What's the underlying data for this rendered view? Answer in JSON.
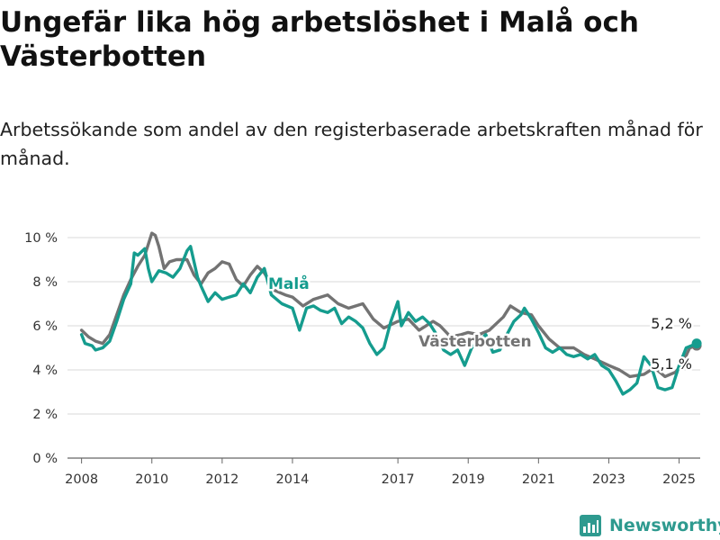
{
  "header": {
    "title": "Ungefär lika hög arbetslöshet i Malå och Västerbotten",
    "subtitle": "Arbetssökande som andel av den registerbaserade arbetskraften månad för månad."
  },
  "brand": {
    "name": "Newsworthy",
    "icon": "bar-chart-logo-icon",
    "color": "#2e9a8f"
  },
  "chart_data": {
    "type": "line",
    "ylim": [
      0,
      10
    ],
    "xlim": [
      2007.6,
      2025.6
    ],
    "y_ticks": [
      {
        "value": 0,
        "label": "0 %"
      },
      {
        "value": 2,
        "label": "2 %"
      },
      {
        "value": 4,
        "label": "4 %"
      },
      {
        "value": 6,
        "label": "6 %"
      },
      {
        "value": 8,
        "label": "8 %"
      },
      {
        "value": 10,
        "label": "10 %"
      }
    ],
    "x_ticks": [
      {
        "value": 2008,
        "label": "2008"
      },
      {
        "value": 2010,
        "label": "2010"
      },
      {
        "value": 2012,
        "label": "2012"
      },
      {
        "value": 2014,
        "label": "2014"
      },
      {
        "value": 2017,
        "label": "2017"
      },
      {
        "value": 2019,
        "label": "2019"
      },
      {
        "value": 2021,
        "label": "2021"
      },
      {
        "value": 2023,
        "label": "2023"
      },
      {
        "value": 2025,
        "label": "2025"
      }
    ],
    "grid": true,
    "series": [
      {
        "name": "Västerbotten",
        "color": "#737373",
        "end_label": "5,1 %",
        "points": [
          [
            2008.0,
            5.8
          ],
          [
            2008.2,
            5.5
          ],
          [
            2008.4,
            5.3
          ],
          [
            2008.6,
            5.2
          ],
          [
            2008.8,
            5.6
          ],
          [
            2009.0,
            6.5
          ],
          [
            2009.2,
            7.4
          ],
          [
            2009.4,
            8.1
          ],
          [
            2009.6,
            8.7
          ],
          [
            2009.8,
            9.2
          ],
          [
            2010.0,
            10.2
          ],
          [
            2010.1,
            10.1
          ],
          [
            2010.2,
            9.6
          ],
          [
            2010.35,
            8.6
          ],
          [
            2010.5,
            8.9
          ],
          [
            2010.7,
            9.0
          ],
          [
            2011.0,
            9.0
          ],
          [
            2011.2,
            8.3
          ],
          [
            2011.4,
            7.9
          ],
          [
            2011.6,
            8.4
          ],
          [
            2011.8,
            8.6
          ],
          [
            2012.0,
            8.9
          ],
          [
            2012.2,
            8.8
          ],
          [
            2012.4,
            8.1
          ],
          [
            2012.6,
            7.8
          ],
          [
            2012.8,
            8.3
          ],
          [
            2013.0,
            8.7
          ],
          [
            2013.2,
            8.4
          ],
          [
            2013.5,
            7.6
          ],
          [
            2013.8,
            7.4
          ],
          [
            2014.0,
            7.3
          ],
          [
            2014.3,
            6.9
          ],
          [
            2014.6,
            7.2
          ],
          [
            2015.0,
            7.4
          ],
          [
            2015.3,
            7.0
          ],
          [
            2015.6,
            6.8
          ],
          [
            2016.0,
            7.0
          ],
          [
            2016.3,
            6.3
          ],
          [
            2016.6,
            5.9
          ],
          [
            2017.0,
            6.2
          ],
          [
            2017.3,
            6.3
          ],
          [
            2017.6,
            5.8
          ],
          [
            2018.0,
            6.2
          ],
          [
            2018.2,
            6.0
          ],
          [
            2018.5,
            5.5
          ],
          [
            2018.8,
            5.6
          ],
          [
            2019.0,
            5.7
          ],
          [
            2019.3,
            5.6
          ],
          [
            2019.6,
            5.8
          ],
          [
            2020.0,
            6.4
          ],
          [
            2020.2,
            6.9
          ],
          [
            2020.5,
            6.6
          ],
          [
            2020.8,
            6.5
          ],
          [
            2021.0,
            6.0
          ],
          [
            2021.3,
            5.4
          ],
          [
            2021.6,
            5.0
          ],
          [
            2022.0,
            5.0
          ],
          [
            2022.3,
            4.7
          ],
          [
            2022.6,
            4.5
          ],
          [
            2023.0,
            4.2
          ],
          [
            2023.3,
            4.0
          ],
          [
            2023.6,
            3.7
          ],
          [
            2024.0,
            3.8
          ],
          [
            2024.3,
            4.1
          ],
          [
            2024.6,
            3.7
          ],
          [
            2024.9,
            3.9
          ],
          [
            2025.1,
            4.3
          ],
          [
            2025.3,
            5.0
          ],
          [
            2025.5,
            5.1
          ]
        ]
      },
      {
        "name": "Malå",
        "color": "#159c8e",
        "end_label": "5,2 %",
        "points": [
          [
            2008.0,
            5.6
          ],
          [
            2008.1,
            5.2
          ],
          [
            2008.3,
            5.1
          ],
          [
            2008.4,
            4.9
          ],
          [
            2008.6,
            5.0
          ],
          [
            2008.8,
            5.3
          ],
          [
            2009.0,
            6.2
          ],
          [
            2009.2,
            7.2
          ],
          [
            2009.4,
            7.9
          ],
          [
            2009.5,
            9.3
          ],
          [
            2009.6,
            9.2
          ],
          [
            2009.8,
            9.5
          ],
          [
            2009.9,
            8.6
          ],
          [
            2010.0,
            8.0
          ],
          [
            2010.2,
            8.5
          ],
          [
            2010.4,
            8.4
          ],
          [
            2010.6,
            8.2
          ],
          [
            2010.8,
            8.6
          ],
          [
            2011.0,
            9.4
          ],
          [
            2011.1,
            9.6
          ],
          [
            2011.3,
            8.2
          ],
          [
            2011.4,
            7.8
          ],
          [
            2011.6,
            7.1
          ],
          [
            2011.8,
            7.5
          ],
          [
            2012.0,
            7.2
          ],
          [
            2012.2,
            7.3
          ],
          [
            2012.4,
            7.4
          ],
          [
            2012.6,
            7.9
          ],
          [
            2012.8,
            7.5
          ],
          [
            2013.0,
            8.2
          ],
          [
            2013.2,
            8.6
          ],
          [
            2013.4,
            7.4
          ],
          [
            2013.7,
            7.0
          ],
          [
            2014.0,
            6.8
          ],
          [
            2014.2,
            5.8
          ],
          [
            2014.4,
            6.8
          ],
          [
            2014.6,
            6.9
          ],
          [
            2014.8,
            6.7
          ],
          [
            2015.0,
            6.6
          ],
          [
            2015.2,
            6.8
          ],
          [
            2015.4,
            6.1
          ],
          [
            2015.6,
            6.4
          ],
          [
            2015.8,
            6.2
          ],
          [
            2016.0,
            5.9
          ],
          [
            2016.2,
            5.2
          ],
          [
            2016.4,
            4.7
          ],
          [
            2016.6,
            5.0
          ],
          [
            2016.8,
            6.2
          ],
          [
            2017.0,
            7.1
          ],
          [
            2017.1,
            6.0
          ],
          [
            2017.3,
            6.6
          ],
          [
            2017.5,
            6.2
          ],
          [
            2017.7,
            6.4
          ],
          [
            2017.9,
            6.1
          ],
          [
            2018.1,
            5.6
          ],
          [
            2018.3,
            4.9
          ],
          [
            2018.5,
            4.7
          ],
          [
            2018.7,
            4.9
          ],
          [
            2018.9,
            4.2
          ],
          [
            2019.1,
            5.0
          ],
          [
            2019.3,
            5.3
          ],
          [
            2019.5,
            5.6
          ],
          [
            2019.7,
            4.8
          ],
          [
            2019.9,
            4.9
          ],
          [
            2020.1,
            5.6
          ],
          [
            2020.3,
            6.2
          ],
          [
            2020.5,
            6.5
          ],
          [
            2020.6,
            6.8
          ],
          [
            2020.8,
            6.3
          ],
          [
            2021.0,
            5.7
          ],
          [
            2021.2,
            5.0
          ],
          [
            2021.4,
            4.8
          ],
          [
            2021.6,
            5.0
          ],
          [
            2021.8,
            4.7
          ],
          [
            2022.0,
            4.6
          ],
          [
            2022.2,
            4.7
          ],
          [
            2022.4,
            4.5
          ],
          [
            2022.6,
            4.7
          ],
          [
            2022.8,
            4.2
          ],
          [
            2023.0,
            4.0
          ],
          [
            2023.2,
            3.5
          ],
          [
            2023.4,
            2.9
          ],
          [
            2023.6,
            3.1
          ],
          [
            2023.8,
            3.4
          ],
          [
            2024.0,
            4.6
          ],
          [
            2024.2,
            4.2
          ],
          [
            2024.4,
            3.2
          ],
          [
            2024.6,
            3.1
          ],
          [
            2024.8,
            3.2
          ],
          [
            2025.0,
            4.2
          ],
          [
            2025.2,
            5.0
          ],
          [
            2025.5,
            5.2
          ]
        ]
      }
    ]
  }
}
